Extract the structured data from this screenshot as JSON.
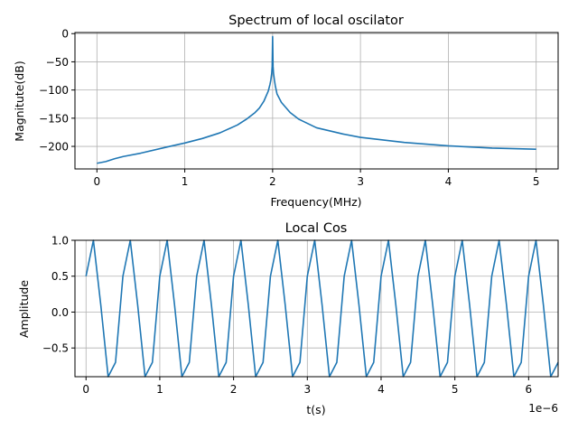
{
  "chart_data": [
    {
      "type": "line",
      "title": "Spectrum of local oscilator",
      "xlabel": "Frequency(MHz)",
      "ylabel": "Magnitute(dB)",
      "xlim": [
        -0.25,
        5.25
      ],
      "ylim": [
        -240,
        2
      ],
      "xticks": [
        0,
        1,
        2,
        3,
        4,
        5
      ],
      "xtick_labels": [
        "0",
        "1",
        "2",
        "3",
        "4",
        "5"
      ],
      "yticks": [
        0,
        -50,
        -100,
        -150,
        -200
      ],
      "ytick_labels": [
        "0",
        "−50",
        "−100",
        "−150",
        "−200"
      ],
      "grid": true,
      "legend": "none",
      "series": [
        {
          "color": "#1f77b4",
          "x": [
            0,
            0.1,
            0.2,
            0.3,
            0.5,
            0.8,
            1.0,
            1.2,
            1.4,
            1.6,
            1.7,
            1.8,
            1.85,
            1.9,
            1.95,
            1.97,
            1.98,
            1.99,
            1.995,
            2.0,
            2.005,
            2.01,
            2.02,
            2.03,
            2.05,
            2.1,
            2.15,
            2.2,
            2.3,
            2.5,
            2.8,
            3.0,
            3.5,
            4.0,
            4.5,
            5.0
          ],
          "y": [
            -230,
            -227,
            -222,
            -218,
            -212,
            -201,
            -194,
            -186,
            -176,
            -162,
            -152,
            -140,
            -132,
            -120,
            -102,
            -90,
            -82,
            -70,
            -58,
            -5,
            -58,
            -70,
            -82,
            -92,
            -107,
            -122,
            -131,
            -140,
            -152,
            -167,
            -178,
            -184,
            -193,
            -199,
            -203,
            -205
          ]
        }
      ]
    },
    {
      "type": "line",
      "title": "Local Cos",
      "xlabel": "t(s)",
      "ylabel": "Amplitude",
      "offset_text": "1e−6",
      "xlim": [
        -0.15,
        6.4
      ],
      "ylim": [
        -0.9,
        1.0
      ],
      "xticks": [
        0,
        1,
        2,
        3,
        4,
        5,
        6
      ],
      "xtick_labels": [
        "0",
        "1",
        "2",
        "3",
        "4",
        "5",
        "6"
      ],
      "yticks": [
        1.0,
        0.5,
        0.0,
        -0.5
      ],
      "ytick_labels": [
        "1.0",
        "0.5",
        "0.0",
        "−0.5"
      ],
      "grid": true,
      "legend": "none",
      "series": [
        {
          "color": "#1f77b4",
          "x": [
            0,
            0.1,
            0.2,
            0.3,
            0.4,
            0.5,
            0.6,
            0.7,
            0.8,
            0.9,
            1.0,
            1.1,
            1.2,
            1.3,
            1.4,
            1.5,
            1.6,
            1.7,
            1.8,
            1.9,
            2.0,
            2.1,
            2.2,
            2.3,
            2.4,
            2.5,
            2.6,
            2.7,
            2.8,
            2.9,
            3.0,
            3.1,
            3.2,
            3.3,
            3.4,
            3.5,
            3.6,
            3.7,
            3.8,
            3.9,
            4.0,
            4.1,
            4.2,
            4.3,
            4.4,
            4.5,
            4.6,
            4.7,
            4.8,
            4.9,
            5.0,
            5.1,
            5.2,
            5.3,
            5.4,
            5.5,
            5.6,
            5.7,
            5.8,
            5.9,
            6.0,
            6.1,
            6.2,
            6.3,
            6.4
          ],
          "y": [
            0.5,
            1.0,
            0.1,
            -0.9,
            -0.7,
            0.5,
            1.0,
            0.1,
            -0.9,
            -0.7,
            0.5,
            1.0,
            0.1,
            -0.9,
            -0.7,
            0.5,
            1.0,
            0.1,
            -0.9,
            -0.7,
            0.5,
            1.0,
            0.1,
            -0.9,
            -0.7,
            0.5,
            1.0,
            0.1,
            -0.9,
            -0.7,
            0.5,
            1.0,
            0.1,
            -0.9,
            -0.7,
            0.5,
            1.0,
            0.1,
            -0.9,
            -0.7,
            0.5,
            1.0,
            0.1,
            -0.9,
            -0.7,
            0.5,
            1.0,
            0.1,
            -0.9,
            -0.7,
            0.5,
            1.0,
            0.1,
            -0.9,
            -0.7,
            0.5,
            1.0,
            0.1,
            -0.9,
            -0.7,
            0.5,
            1.0,
            0.1,
            -0.9,
            -0.7
          ]
        }
      ]
    }
  ]
}
